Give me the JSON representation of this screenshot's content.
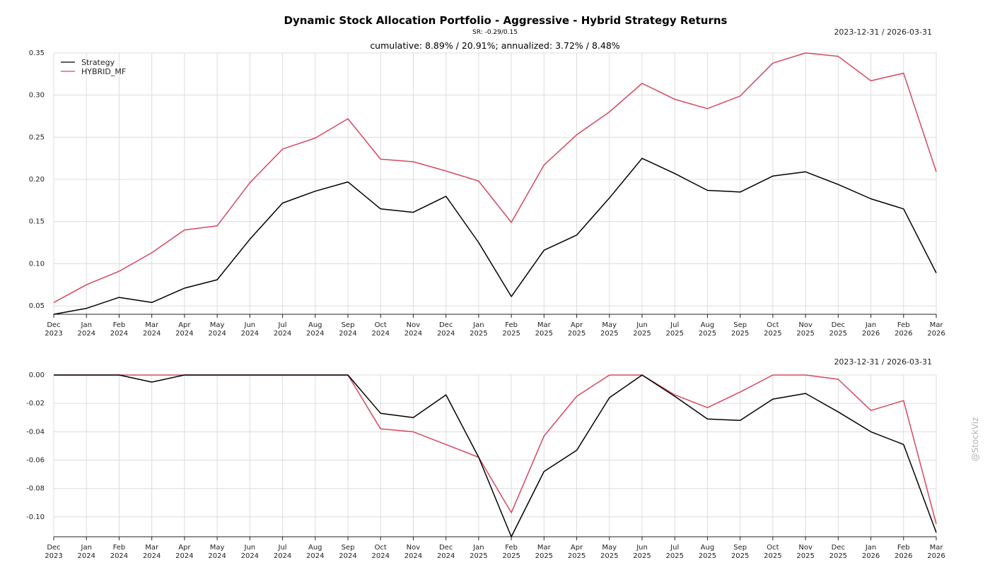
{
  "title": "Dynamic Stock Allocation Portfolio - Aggressive - Hybrid Strategy Returns",
  "subtitle": "SR: -0.29/0.15",
  "annotation": "cumulative: 8.89% / 20.91%; annualized: 3.72% / 8.48%",
  "watermark": "@StockViz",
  "colors": {
    "strategy": "#000000",
    "benchmark": "#d6485e",
    "grid": "#dcdcdc"
  },
  "chart_data": [
    {
      "type": "line",
      "date_range": "2023-12-31 / 2026-03-31",
      "x": [
        "Dec 2023",
        "Jan 2024",
        "Feb 2024",
        "Mar 2024",
        "Apr 2024",
        "May 2024",
        "Jun 2024",
        "Jul 2024",
        "Aug 2024",
        "Sep 2024",
        "Oct 2024",
        "Nov 2024",
        "Dec 2024",
        "Jan 2025",
        "Feb 2025",
        "Mar 2025",
        "Apr 2025",
        "May 2025",
        "Jun 2025",
        "Jul 2025",
        "Aug 2025",
        "Sep 2025",
        "Oct 2025",
        "Nov 2025",
        "Dec 2025",
        "Jan 2026",
        "Feb 2026",
        "Mar 2026"
      ],
      "x_tick_labels": [
        [
          "Dec",
          "2023"
        ],
        [
          "Jan",
          "2024"
        ],
        [
          "Feb",
          "2024"
        ],
        [
          "Mar",
          "2024"
        ],
        [
          "Apr",
          "2024"
        ],
        [
          "May",
          "2024"
        ],
        [
          "Jun",
          "2024"
        ],
        [
          "Jul",
          "2024"
        ],
        [
          "Aug",
          "2024"
        ],
        [
          "Sep",
          "2024"
        ],
        [
          "Oct",
          "2024"
        ],
        [
          "Nov",
          "2024"
        ],
        [
          "Dec",
          "2024"
        ],
        [
          "Jan",
          "2025"
        ],
        [
          "Feb",
          "2025"
        ],
        [
          "Mar",
          "2025"
        ],
        [
          "Apr",
          "2025"
        ],
        [
          "May",
          "2025"
        ],
        [
          "Jun",
          "2025"
        ],
        [
          "Jul",
          "2025"
        ],
        [
          "Aug",
          "2025"
        ],
        [
          "Sep",
          "2025"
        ],
        [
          "Oct",
          "2025"
        ],
        [
          "Nov",
          "2025"
        ],
        [
          "Dec",
          "2025"
        ],
        [
          "Jan",
          "2026"
        ],
        [
          "Feb",
          "2026"
        ],
        [
          "Mar",
          "2026"
        ]
      ],
      "ylim": [
        0.04,
        0.35
      ],
      "y_ticks": [
        0.05,
        0.1,
        0.15,
        0.2,
        0.25,
        0.3,
        0.35
      ],
      "y_tick_labels": [
        "0.05",
        "0.10",
        "0.15",
        "0.20",
        "0.25",
        "0.30",
        "0.35"
      ],
      "grid": true,
      "legend": "top-left",
      "series": [
        {
          "name": "Strategy",
          "color": "#000000",
          "values": [
            0.04,
            0.047,
            0.06,
            0.054,
            0.071,
            0.081,
            0.129,
            0.172,
            0.186,
            0.197,
            0.165,
            0.161,
            0.18,
            0.125,
            0.061,
            0.116,
            0.134,
            0.178,
            0.225,
            0.207,
            0.187,
            0.185,
            0.204,
            0.209,
            0.194,
            0.177,
            0.165,
            0.089
          ]
        },
        {
          "name": "HYBRID_MF",
          "color": "#d6485e",
          "values": [
            0.054,
            0.075,
            0.091,
            0.113,
            0.14,
            0.145,
            0.196,
            0.236,
            0.249,
            0.272,
            0.224,
            0.221,
            0.21,
            0.198,
            0.149,
            0.217,
            0.253,
            0.28,
            0.314,
            0.295,
            0.284,
            0.299,
            0.338,
            0.35,
            0.346,
            0.317,
            0.326,
            0.209
          ]
        }
      ]
    },
    {
      "type": "line",
      "date_range": "2023-12-31 / 2026-03-31",
      "x": [
        "Dec 2023",
        "Jan 2024",
        "Feb 2024",
        "Mar 2024",
        "Apr 2024",
        "May 2024",
        "Jun 2024",
        "Jul 2024",
        "Aug 2024",
        "Sep 2024",
        "Oct 2024",
        "Nov 2024",
        "Dec 2024",
        "Jan 2025",
        "Feb 2025",
        "Mar 2025",
        "Apr 2025",
        "May 2025",
        "Jun 2025",
        "Jul 2025",
        "Aug 2025",
        "Sep 2025",
        "Oct 2025",
        "Nov 2025",
        "Dec 2025",
        "Jan 2026",
        "Feb 2026",
        "Mar 2026"
      ],
      "x_tick_labels": [
        [
          "Dec",
          "2023"
        ],
        [
          "Jan",
          "2024"
        ],
        [
          "Feb",
          "2024"
        ],
        [
          "Mar",
          "2024"
        ],
        [
          "Apr",
          "2024"
        ],
        [
          "May",
          "2024"
        ],
        [
          "Jun",
          "2024"
        ],
        [
          "Jul",
          "2024"
        ],
        [
          "Aug",
          "2024"
        ],
        [
          "Sep",
          "2024"
        ],
        [
          "Oct",
          "2024"
        ],
        [
          "Nov",
          "2024"
        ],
        [
          "Dec",
          "2024"
        ],
        [
          "Jan",
          "2025"
        ],
        [
          "Feb",
          "2025"
        ],
        [
          "Mar",
          "2025"
        ],
        [
          "Apr",
          "2025"
        ],
        [
          "May",
          "2025"
        ],
        [
          "Jun",
          "2025"
        ],
        [
          "Jul",
          "2025"
        ],
        [
          "Aug",
          "2025"
        ],
        [
          "Sep",
          "2025"
        ],
        [
          "Oct",
          "2025"
        ],
        [
          "Nov",
          "2025"
        ],
        [
          "Dec",
          "2025"
        ],
        [
          "Jan",
          "2026"
        ],
        [
          "Feb",
          "2026"
        ],
        [
          "Mar",
          "2026"
        ]
      ],
      "ylim": [
        -0.114,
        0.0
      ],
      "y_ticks": [
        0.0,
        -0.02,
        -0.04,
        -0.06,
        -0.08,
        -0.1
      ],
      "y_tick_labels": [
        "0.00",
        "-0.02",
        "-0.04",
        "-0.06",
        "-0.08",
        "-0.10"
      ],
      "grid": true,
      "series": [
        {
          "name": "Strategy",
          "color": "#000000",
          "values": [
            0.0,
            0.0,
            0.0,
            -0.005,
            0.0,
            0.0,
            0.0,
            0.0,
            0.0,
            0.0,
            -0.027,
            -0.03,
            -0.014,
            -0.058,
            -0.114,
            -0.068,
            -0.053,
            -0.016,
            0.0,
            -0.015,
            -0.031,
            -0.032,
            -0.017,
            -0.013,
            -0.026,
            -0.04,
            -0.049,
            -0.111
          ]
        },
        {
          "name": "HYBRID_MF",
          "color": "#d6485e",
          "values": [
            0.0,
            0.0,
            0.0,
            0.0,
            0.0,
            0.0,
            0.0,
            0.0,
            0.0,
            0.0,
            -0.038,
            -0.04,
            -0.049,
            -0.058,
            -0.097,
            -0.043,
            -0.015,
            0.0,
            0.0,
            -0.014,
            -0.023,
            -0.012,
            0.0,
            0.0,
            -0.003,
            -0.025,
            -0.018,
            -0.105
          ]
        }
      ]
    }
  ]
}
